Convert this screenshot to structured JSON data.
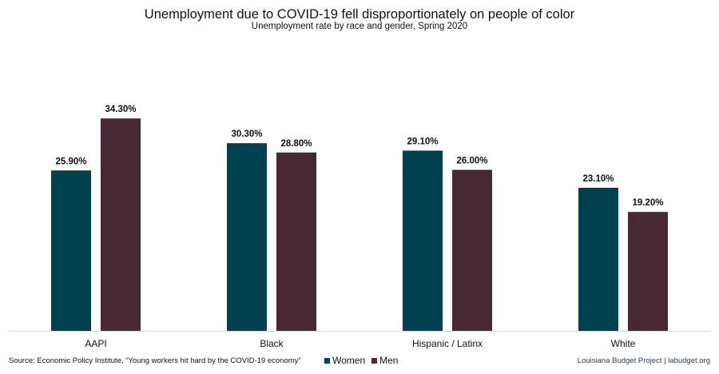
{
  "header": {
    "title": "Unemployment due to COVID-19 fell disproportionately on people of color",
    "subtitle": "Unemployment rate by race and gender, Spring 2020"
  },
  "footer": {
    "source": "Source: Economic Policy Institute, “Young workers hit hard by the COVID-19 economy”",
    "credit": "Louisiana Budget Project | labudget.org"
  },
  "chart_data": {
    "type": "bar",
    "title": "Unemployment due to COVID-19 fell disproportionately on people of color",
    "subtitle": "Unemployment rate by race and gender, Spring 2020",
    "xlabel": "",
    "ylabel": "",
    "ylim": [
      0,
      40
    ],
    "grid": false,
    "legend_position": "bottom",
    "categories": [
      "AAPI",
      "Black",
      "Hispanic / Latinx",
      "White"
    ],
    "series": [
      {
        "name": "Women",
        "color": "#00414f",
        "values": [
          25.9,
          30.3,
          29.1,
          23.1
        ],
        "labels": [
          "25.90%",
          "30.30%",
          "29.10%",
          "23.10%"
        ]
      },
      {
        "name": "Men",
        "color": "#472833",
        "values": [
          34.3,
          28.8,
          26.0,
          19.2
        ],
        "labels": [
          "34.30%",
          "28.80%",
          "26.00%",
          "19.20%"
        ]
      }
    ]
  }
}
